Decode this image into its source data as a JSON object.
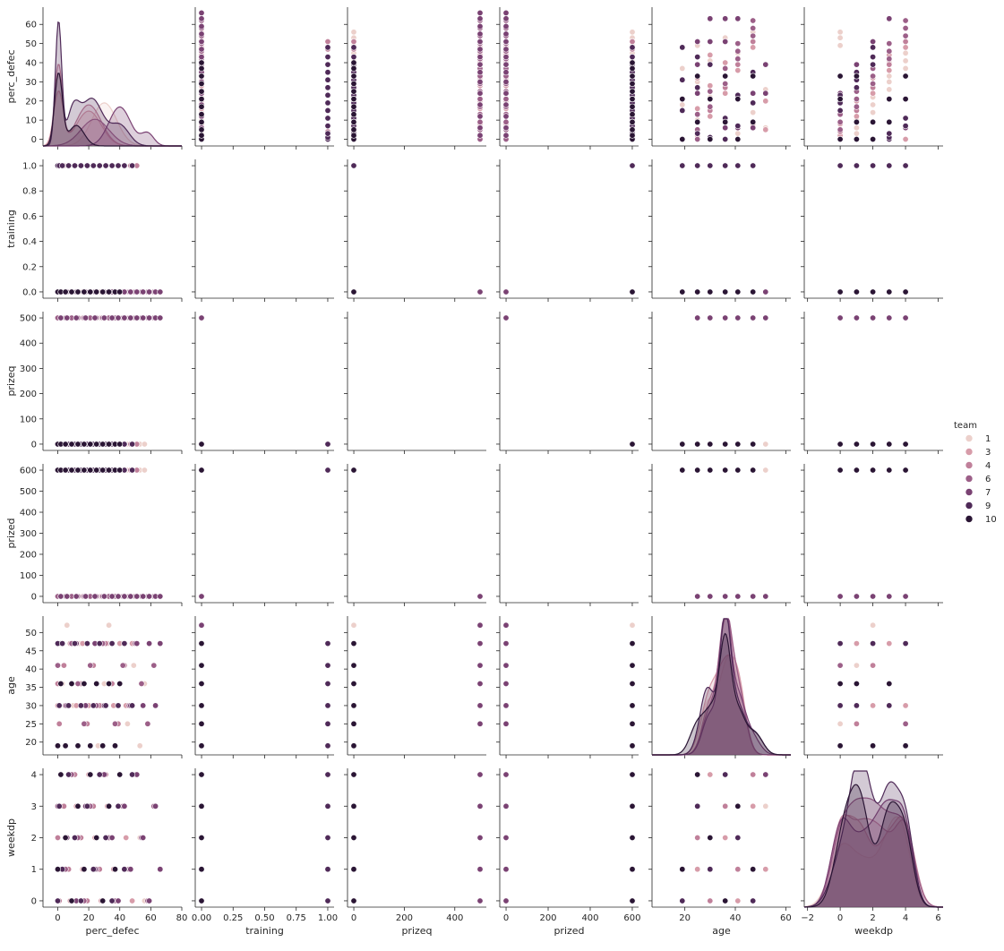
{
  "chart_data": {
    "type": "pairplot",
    "variables": [
      "perc_defec",
      "training",
      "prizeq",
      "prized",
      "age",
      "weekdp"
    ],
    "hue": {
      "title": "team",
      "levels": [
        "1",
        "3",
        "4",
        "6",
        "7",
        "9",
        "10"
      ],
      "colors": [
        "#ecd0cb",
        "#d79ca9",
        "#c0809a",
        "#9c5f88",
        "#7a4273",
        "#4f2a58",
        "#2a1534"
      ]
    },
    "axes": {
      "perc_defec": {
        "range": [
          -9.5,
          80
        ],
        "ticks": [
          0,
          20,
          40,
          60,
          80
        ],
        "tick_labels": [
          "0",
          "20",
          "40",
          "60",
          "80"
        ],
        "yrange": [
          -3.5,
          69
        ],
        "yticks": [
          0,
          10,
          20,
          30,
          40,
          50,
          60
        ],
        "ytick_labels": [
          "0",
          "10",
          "20",
          "30",
          "40",
          "50",
          "60"
        ]
      },
      "training": {
        "range": [
          -0.05,
          1.05
        ],
        "ticks": [
          0,
          0.25,
          0.5,
          0.75,
          1.0
        ],
        "tick_labels": [
          "0.00",
          "0.25",
          "0.50",
          "0.75",
          "1.00"
        ],
        "yrange": [
          -0.05,
          1.05
        ],
        "yticks": [
          0,
          0.2,
          0.4,
          0.6,
          0.8,
          1.0
        ],
        "ytick_labels": [
          "0.0",
          "0.2",
          "0.4",
          "0.6",
          "0.8",
          "1.0"
        ]
      },
      "prizeq": {
        "range": [
          -25,
          525
        ],
        "ticks": [
          0,
          200,
          400
        ],
        "tick_labels": [
          "0",
          "200",
          "400"
        ],
        "yrange": [
          -25,
          525
        ],
        "yticks": [
          0,
          100,
          200,
          300,
          400,
          500
        ],
        "ytick_labels": [
          "0",
          "100",
          "200",
          "300",
          "400",
          "500"
        ]
      },
      "prized": {
        "range": [
          -30,
          630
        ],
        "ticks": [
          0,
          200,
          400,
          600
        ],
        "tick_labels": [
          "0",
          "200",
          "400",
          "600"
        ],
        "yrange": [
          -30,
          630
        ],
        "yticks": [
          0,
          100,
          200,
          300,
          400,
          500,
          600
        ],
        "ytick_labels": [
          "0",
          "100",
          "200",
          "300",
          "400",
          "500",
          "600"
        ]
      },
      "age": {
        "range": [
          7,
          62
        ],
        "ticks": [
          20,
          40,
          60
        ],
        "tick_labels": [
          "20",
          "40",
          "60"
        ],
        "yrange": [
          16.5,
          54.5
        ],
        "yticks": [
          20,
          25,
          30,
          35,
          40,
          45,
          50
        ],
        "ytick_labels": [
          "20",
          "25",
          "30",
          "35",
          "40",
          "45",
          "50"
        ]
      },
      "weekdp": {
        "range": [
          -2.2,
          6.3
        ],
        "ticks": [
          -2,
          0,
          2,
          4,
          6
        ],
        "tick_labels": [
          "−2",
          "0",
          "2",
          "4",
          "6"
        ],
        "yrange": [
          -0.2,
          4.2
        ],
        "yticks": [
          0,
          1,
          2,
          3,
          4
        ],
        "ytick_labels": [
          "0",
          "1",
          "2",
          "3",
          "4"
        ]
      }
    },
    "kde_perc_defec": [
      {
        "team": "1",
        "components": [
          [
            30,
            8,
            21
          ]
        ]
      },
      {
        "team": "3",
        "components": [
          [
            0.5,
            3,
            26
          ],
          [
            20,
            8,
            17
          ]
        ]
      },
      {
        "team": "4",
        "components": [
          [
            0.5,
            2.5,
            39
          ],
          [
            20,
            8,
            20
          ]
        ]
      },
      {
        "team": "6",
        "components": [
          [
            24,
            9,
            13
          ]
        ]
      },
      {
        "team": "7",
        "components": [
          [
            40,
            7,
            19
          ],
          [
            58,
            4,
            6
          ]
        ]
      },
      {
        "team": "9",
        "components": [
          [
            0.5,
            2,
            60
          ],
          [
            10,
            4,
            16
          ],
          [
            22,
            7,
            23
          ],
          [
            40,
            6,
            10
          ]
        ]
      },
      {
        "team": "10",
        "components": [
          [
            0.5,
            2.5,
            35
          ],
          [
            12,
            5,
            10
          ]
        ]
      }
    ],
    "kde_age": [
      {
        "team": "1",
        "components": [
          [
            29,
            3,
            0.37
          ],
          [
            36,
            3,
            0.55
          ],
          [
            41,
            3,
            0.5
          ]
        ]
      },
      {
        "team": "3",
        "components": [
          [
            30,
            3.5,
            0.45
          ],
          [
            36,
            3,
            0.5
          ],
          [
            41,
            3,
            0.52
          ]
        ]
      },
      {
        "team": "4",
        "components": [
          [
            30,
            3,
            0.38
          ],
          [
            36,
            2.5,
            0.85
          ],
          [
            41,
            3,
            0.5
          ]
        ]
      },
      {
        "team": "6",
        "components": [
          [
            30,
            3,
            0.33
          ],
          [
            36,
            2.5,
            0.92
          ],
          [
            41,
            3,
            0.48
          ]
        ]
      },
      {
        "team": "7",
        "components": [
          [
            30,
            3,
            0.3
          ],
          [
            36,
            2.2,
            0.95
          ],
          [
            41,
            3,
            0.42
          ],
          [
            47,
            3,
            0.12
          ]
        ]
      },
      {
        "team": "9",
        "components": [
          [
            29,
            3,
            0.5
          ],
          [
            36,
            2.2,
            0.95
          ],
          [
            41,
            3,
            0.35
          ],
          [
            48,
            3,
            0.15
          ]
        ]
      },
      {
        "team": "10",
        "components": [
          [
            25,
            3,
            0.22
          ],
          [
            31,
            3,
            0.32
          ],
          [
            36,
            2.2,
            0.75
          ],
          [
            41,
            3,
            0.32
          ],
          [
            48,
            3,
            0.15
          ]
        ]
      }
    ],
    "kde_weekdp": [
      {
        "team": "1",
        "components": [
          [
            0,
            0.7,
            0.38
          ],
          [
            1.5,
            0.9,
            0.32
          ],
          [
            3.3,
            0.7,
            0.55
          ],
          [
            4,
            0.5,
            0.2
          ]
        ]
      },
      {
        "team": "3",
        "components": [
          [
            0,
            0.6,
            0.5
          ],
          [
            1.2,
            0.7,
            0.55
          ],
          [
            3,
            0.7,
            0.5
          ],
          [
            4,
            0.5,
            0.45
          ]
        ]
      },
      {
        "team": "4",
        "components": [
          [
            0,
            0.6,
            0.55
          ],
          [
            1.2,
            0.7,
            0.45
          ],
          [
            2.5,
            0.8,
            0.5
          ],
          [
            4,
            0.6,
            0.55
          ]
        ]
      },
      {
        "team": "6",
        "components": [
          [
            0,
            0.6,
            0.48
          ],
          [
            1,
            0.6,
            0.55
          ],
          [
            2,
            0.6,
            0.55
          ],
          [
            3,
            0.6,
            0.45
          ],
          [
            4,
            0.6,
            0.5
          ]
        ]
      },
      {
        "team": "7",
        "components": [
          [
            0,
            0.6,
            0.52
          ],
          [
            1.5,
            0.9,
            0.5
          ],
          [
            3,
            0.7,
            0.62
          ],
          [
            4,
            0.5,
            0.45
          ]
        ]
      },
      {
        "team": "9",
        "components": [
          [
            0.2,
            0.7,
            0.42
          ],
          [
            1.2,
            0.55,
            0.92
          ],
          [
            2,
            0.5,
            0.35
          ],
          [
            3,
            0.55,
            0.8
          ],
          [
            4,
            0.5,
            0.6
          ]
        ]
      },
      {
        "team": "10",
        "components": [
          [
            0.2,
            0.6,
            0.5
          ],
          [
            1.2,
            0.6,
            0.75
          ],
          [
            3,
            0.6,
            0.7
          ],
          [
            4,
            0.5,
            0.45
          ]
        ]
      }
    ],
    "kde_peaks": {
      "perc_defec": 65,
      "age": 1.0,
      "weekdp": 1.0
    },
    "observations_by_team": [
      {
        "team": "1",
        "perc_defec": [
          0,
          3,
          6,
          10,
          14,
          18,
          22,
          26,
          30,
          33,
          37,
          41,
          45,
          49,
          53,
          56
        ],
        "training": 0,
        "prizeq": 0,
        "prized": 600,
        "age": [
          19,
          25,
          30,
          36,
          41,
          47,
          52
        ],
        "weekdp": [
          0,
          1,
          2,
          3,
          4
        ]
      },
      {
        "team": "3",
        "perc_defec": [
          0,
          2,
          5,
          8,
          12,
          16,
          20,
          24,
          28,
          32,
          36,
          40,
          44,
          48
        ],
        "training": 0,
        "prizeq": 500,
        "prized": 0,
        "age": [
          25,
          30,
          36,
          41,
          47,
          52
        ],
        "weekdp": [
          0,
          1,
          2,
          3,
          4
        ]
      },
      {
        "team": "4",
        "perc_defec": [
          0,
          1,
          4,
          7,
          11,
          15,
          19,
          23,
          27,
          31,
          35,
          39,
          43,
          47,
          51
        ],
        "training": 1,
        "prizeq": 0,
        "prized": 600,
        "age": [
          25,
          30,
          36,
          41,
          47
        ],
        "weekdp": [
          0,
          1,
          2,
          3,
          4
        ]
      },
      {
        "team": "6",
        "perc_defec": [
          0,
          5,
          9,
          13,
          17,
          21,
          25,
          29,
          33,
          37,
          42,
          46,
          50,
          54,
          58,
          62
        ],
        "training": 0,
        "prizeq": 500,
        "prized": 0,
        "age": [
          25,
          30,
          36,
          41,
          47
        ],
        "weekdp": [
          0,
          1,
          2,
          3,
          4
        ]
      },
      {
        "team": "7",
        "perc_defec": [
          2,
          6,
          12,
          18,
          24,
          30,
          35,
          39,
          43,
          47,
          51,
          55,
          59,
          63,
          66
        ],
        "training": 0,
        "prizeq": 500,
        "prized": 0,
        "age": [
          25,
          30,
          36,
          41,
          47,
          52
        ],
        "weekdp": [
          0,
          1,
          2,
          3,
          4
        ]
      },
      {
        "team": "9",
        "perc_defec": [
          0,
          1,
          3,
          7,
          11,
          15,
          19,
          23,
          27,
          31,
          35,
          39,
          43,
          48
        ],
        "training": 1,
        "prizeq": 0,
        "prized": 600,
        "age": [
          19,
          25,
          30,
          36,
          41,
          47
        ],
        "weekdp": [
          0,
          1,
          2,
          3,
          4
        ]
      },
      {
        "team": "10",
        "perc_defec": [
          0,
          2,
          5,
          9,
          13,
          17,
          21,
          25,
          29,
          33,
          37,
          40
        ],
        "training": 0,
        "prizeq": 0,
        "prized": 600,
        "age": [
          19,
          25,
          30,
          36,
          41,
          47
        ],
        "weekdp": [
          0,
          1,
          2,
          3,
          4
        ]
      }
    ]
  }
}
